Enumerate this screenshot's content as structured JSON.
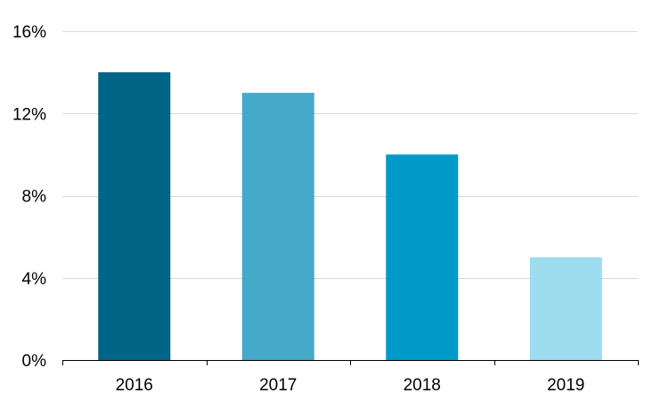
{
  "chart_data": {
    "type": "bar",
    "categories": [
      "2016",
      "2017",
      "2018",
      "2019"
    ],
    "values": [
      14,
      13,
      10,
      5
    ],
    "value_unit": "%",
    "title": "",
    "xlabel": "",
    "ylabel": "",
    "ylim": [
      0,
      16
    ],
    "y_ticks": [
      0,
      4,
      8,
      12,
      16
    ],
    "y_tick_labels": [
      "0%",
      "4%",
      "8%",
      "12%",
      "16%"
    ],
    "grid": true,
    "legend": "none",
    "bar_colors": [
      "#006586",
      "#45a9ca",
      "#009ac8",
      "#9cdcee"
    ]
  }
}
